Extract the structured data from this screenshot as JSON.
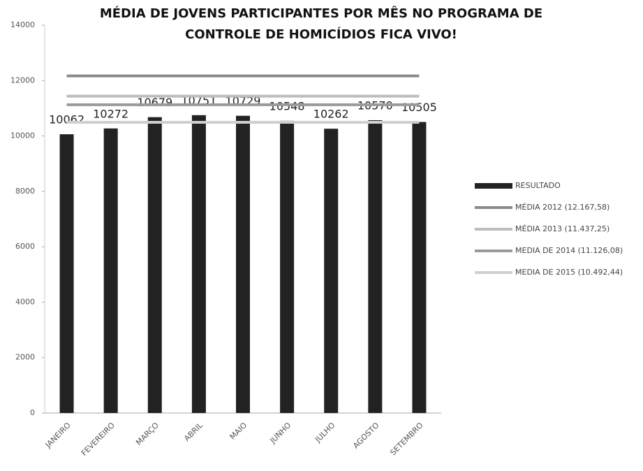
{
  "chart_data": {
    "type": "bar",
    "title": [
      "MÉDIA DE JOVENS PARTICIPANTES POR MÊS NO PROGRAMA DE",
      "CONTROLE DE HOMICÍDIOS FICA VIVO!"
    ],
    "categories": [
      "JANEIRO",
      "FEVEREIRO",
      "MARÇO",
      "ABRIL",
      "MAIO",
      "JUNHO",
      "JULHO",
      "AGOSTO",
      "SETEMBRO"
    ],
    "series": [
      {
        "name": "RESULTADO",
        "type": "bar",
        "color": "#222222",
        "values": [
          10062,
          10272,
          10679,
          10751,
          10729,
          10548,
          10262,
          10570,
          10505
        ]
      },
      {
        "name": "MÉDIA 2012 (12.167,58)",
        "type": "line",
        "color": "#8a8a8a",
        "values": [
          12167.58,
          12167.58,
          12167.58,
          12167.58,
          12167.58,
          12167.58,
          12167.58,
          12167.58,
          12167.58
        ]
      },
      {
        "name": "MÉDIA 2013 (11.437,25)",
        "type": "line",
        "color": "#bdbdbd",
        "values": [
          11437.25,
          11437.25,
          11437.25,
          11437.25,
          11437.25,
          11437.25,
          11437.25,
          11437.25,
          11437.25
        ]
      },
      {
        "name": "MEDIA DE 2014 (11.126,08)",
        "type": "line",
        "color": "#9a9a9a",
        "values": [
          11126.08,
          11126.08,
          11126.08,
          11126.08,
          11126.08,
          11126.08,
          11126.08,
          11126.08,
          11126.08
        ]
      },
      {
        "name": "MEDIA DE 2015 (10.492,44)",
        "type": "line",
        "color": "#cfcfcf",
        "values": [
          10492.44,
          10492.44,
          10492.44,
          10492.44,
          10492.44,
          10492.44,
          10492.44,
          10492.44,
          10492.44
        ]
      }
    ],
    "ylim": [
      0,
      14000
    ],
    "yticks": [
      0,
      2000,
      4000,
      6000,
      8000,
      10000,
      12000,
      14000
    ],
    "legend": "right",
    "data_labels": true
  }
}
